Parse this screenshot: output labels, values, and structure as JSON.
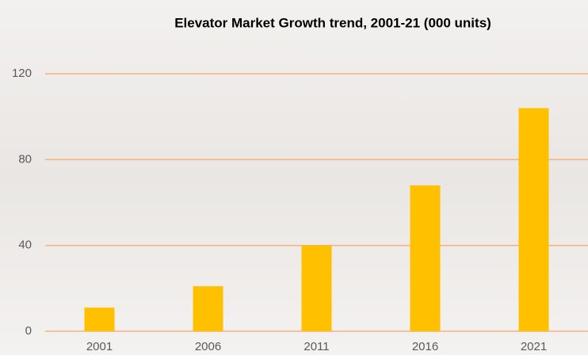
{
  "chart_data": {
    "type": "bar",
    "title": "Elevator Market Growth trend, 2001-21 (000 units)",
    "categories": [
      "2001",
      "2006",
      "2011",
      "2016",
      "2021"
    ],
    "values": [
      11,
      21,
      40,
      68,
      104
    ],
    "color": "#ffc000",
    "ylim": [
      0,
      140
    ],
    "yticks": [
      0,
      40,
      80,
      120
    ],
    "grid": true,
    "grid_color": "#f4b183"
  }
}
